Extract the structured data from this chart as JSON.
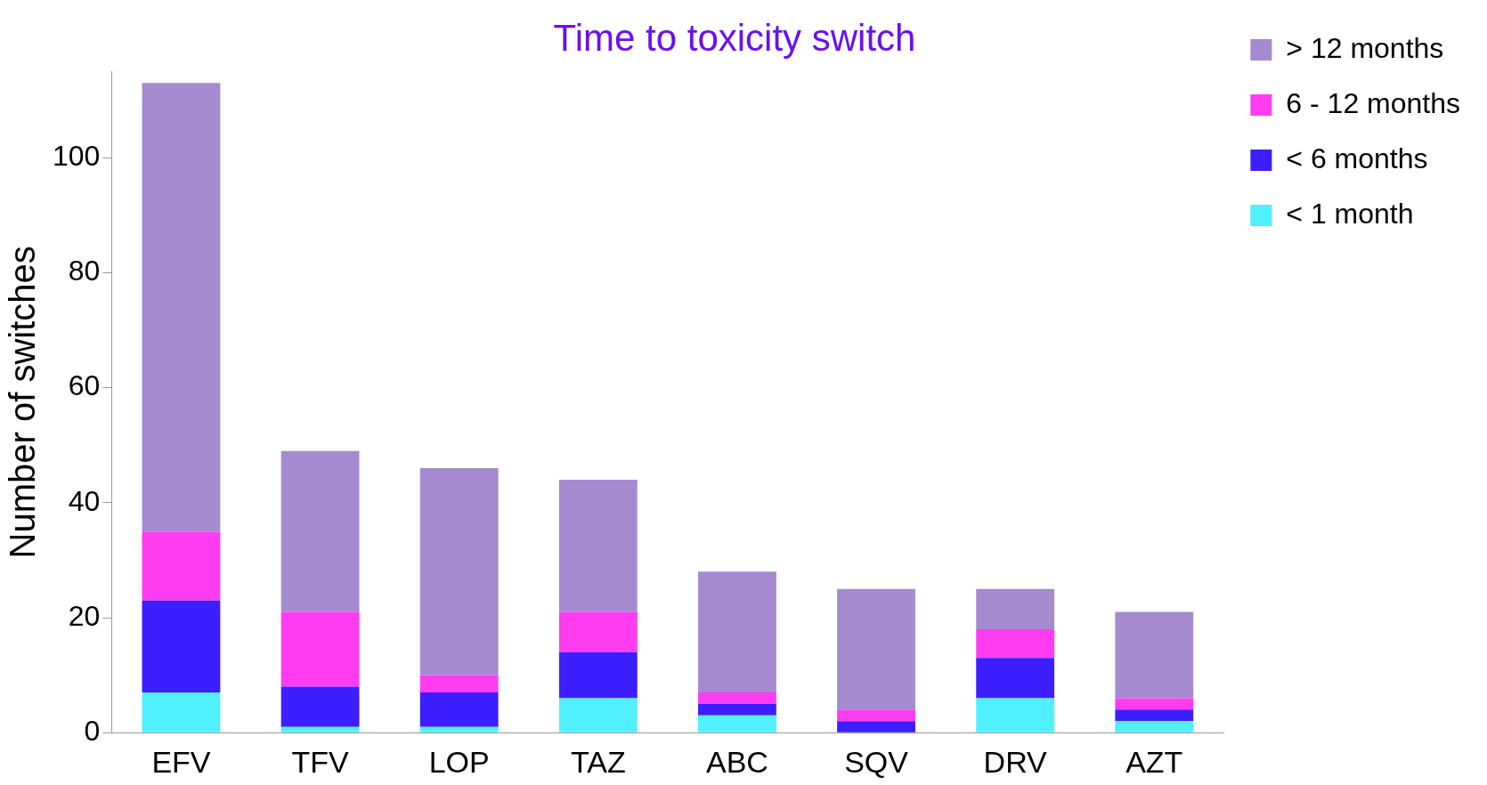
{
  "chart_data": {
    "type": "bar",
    "title": "Time to toxicity switch",
    "ylabel": "Number of switches",
    "categories": [
      "EFV",
      "TFV",
      "LOP",
      "TAZ",
      "ABC",
      "SQV",
      "DRV",
      "AZT"
    ],
    "stacked": true,
    "series": [
      {
        "name": "< 1 month",
        "color": "#50f0ff",
        "values": [
          7,
          1,
          1,
          6,
          3,
          0,
          6,
          2
        ]
      },
      {
        "name": "< 6 months",
        "color": "#3c1eff",
        "values": [
          16,
          7,
          6,
          8,
          2,
          2,
          7,
          2
        ]
      },
      {
        "name": "6 - 12 months",
        "color": "#ff3cf0",
        "values": [
          12,
          13,
          3,
          7,
          2,
          2,
          5,
          2
        ]
      },
      {
        "name": "> 12 months",
        "color": "#a58ad0",
        "values": [
          78,
          28,
          36,
          23,
          21,
          21,
          7,
          15
        ]
      }
    ],
    "ylim": [
      0,
      115
    ],
    "yticks": [
      0,
      20,
      40,
      60,
      80,
      100
    ],
    "grid": false,
    "legend": "top right"
  }
}
